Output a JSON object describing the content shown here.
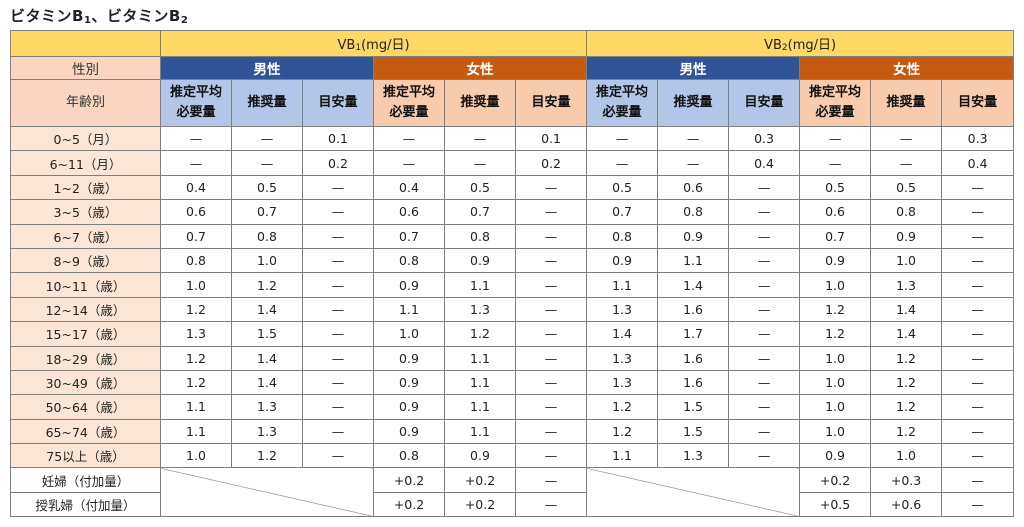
{
  "title": {
    "prefix": "ビタミンB",
    "s1": "1",
    "mid": "、ビタミンB",
    "s2": "2"
  },
  "headers": {
    "vb1": {
      "prefix": "VB",
      "sub": "1",
      "suffix": "(mg/日)"
    },
    "vb2": {
      "prefix": "VB",
      "sub": "2",
      "suffix": "(mg/日)"
    },
    "sex_label": "性別",
    "male": "男性",
    "female": "女性",
    "age_label": "年齢別",
    "metric_ear_1": "推定平均",
    "metric_ear_2": "必要量",
    "metric_rda": "推奨量",
    "metric_ai": "目安量"
  },
  "rows": [
    {
      "age": "0~5（月）",
      "c": [
        "—",
        "—",
        "0.1",
        "—",
        "—",
        "0.1",
        "—",
        "—",
        "0.3",
        "—",
        "—",
        "0.3"
      ]
    },
    {
      "age": "6~11（月）",
      "c": [
        "—",
        "—",
        "0.2",
        "—",
        "—",
        "0.2",
        "—",
        "—",
        "0.4",
        "—",
        "—",
        "0.4"
      ]
    },
    {
      "age": "1~2（歳）",
      "c": [
        "0.4",
        "0.5",
        "—",
        "0.4",
        "0.5",
        "—",
        "0.5",
        "0.6",
        "—",
        "0.5",
        "0.5",
        "—"
      ]
    },
    {
      "age": "3~5（歳）",
      "c": [
        "0.6",
        "0.7",
        "—",
        "0.6",
        "0.7",
        "—",
        "0.7",
        "0.8",
        "—",
        "0.6",
        "0.8",
        "—"
      ]
    },
    {
      "age": "6~7（歳）",
      "c": [
        "0.7",
        "0.8",
        "—",
        "0.7",
        "0.8",
        "—",
        "0.8",
        "0.9",
        "—",
        "0.7",
        "0.9",
        "—"
      ]
    },
    {
      "age": "8~9（歳）",
      "c": [
        "0.8",
        "1.0",
        "—",
        "0.8",
        "0.9",
        "—",
        "0.9",
        "1.1",
        "—",
        "0.9",
        "1.0",
        "—"
      ]
    },
    {
      "age": "10~11（歳）",
      "c": [
        "1.0",
        "1.2",
        "—",
        "0.9",
        "1.1",
        "—",
        "1.1",
        "1.4",
        "—",
        "1.0",
        "1.3",
        "—"
      ]
    },
    {
      "age": "12~14（歳）",
      "c": [
        "1.2",
        "1.4",
        "—",
        "1.1",
        "1.3",
        "—",
        "1.3",
        "1.6",
        "—",
        "1.2",
        "1.4",
        "—"
      ]
    },
    {
      "age": "15~17（歳）",
      "c": [
        "1.3",
        "1.5",
        "—",
        "1.0",
        "1.2",
        "—",
        "1.4",
        "1.7",
        "—",
        "1.2",
        "1.4",
        "—"
      ]
    },
    {
      "age": "18~29（歳）",
      "c": [
        "1.2",
        "1.4",
        "—",
        "0.9",
        "1.1",
        "—",
        "1.3",
        "1.6",
        "—",
        "1.0",
        "1.2",
        "—"
      ]
    },
    {
      "age": "30~49（歳）",
      "c": [
        "1.2",
        "1.4",
        "—",
        "0.9",
        "1.1",
        "—",
        "1.3",
        "1.6",
        "—",
        "1.0",
        "1.2",
        "—"
      ]
    },
    {
      "age": "50~64（歳）",
      "c": [
        "1.1",
        "1.3",
        "—",
        "0.9",
        "1.1",
        "—",
        "1.2",
        "1.5",
        "—",
        "1.0",
        "1.2",
        "—"
      ]
    },
    {
      "age": "65~74（歳）",
      "c": [
        "1.1",
        "1.3",
        "—",
        "0.9",
        "1.1",
        "—",
        "1.2",
        "1.5",
        "—",
        "1.0",
        "1.2",
        "—"
      ]
    },
    {
      "age": "75以上（歳）",
      "c": [
        "1.0",
        "1.2",
        "—",
        "0.8",
        "0.9",
        "—",
        "1.1",
        "1.3",
        "—",
        "0.9",
        "1.0",
        "—"
      ]
    }
  ],
  "extra_rows": [
    {
      "label": "妊婦（付加量）",
      "f1": [
        "+0.2",
        "+0.2",
        "—"
      ],
      "f2": [
        "+0.2",
        "+0.3",
        "—"
      ]
    },
    {
      "label": "授乳婦（付加量）",
      "f1": [
        "+0.2",
        "+0.2",
        "—"
      ],
      "f2": [
        "+0.5",
        "+0.6",
        "—"
      ]
    }
  ]
}
